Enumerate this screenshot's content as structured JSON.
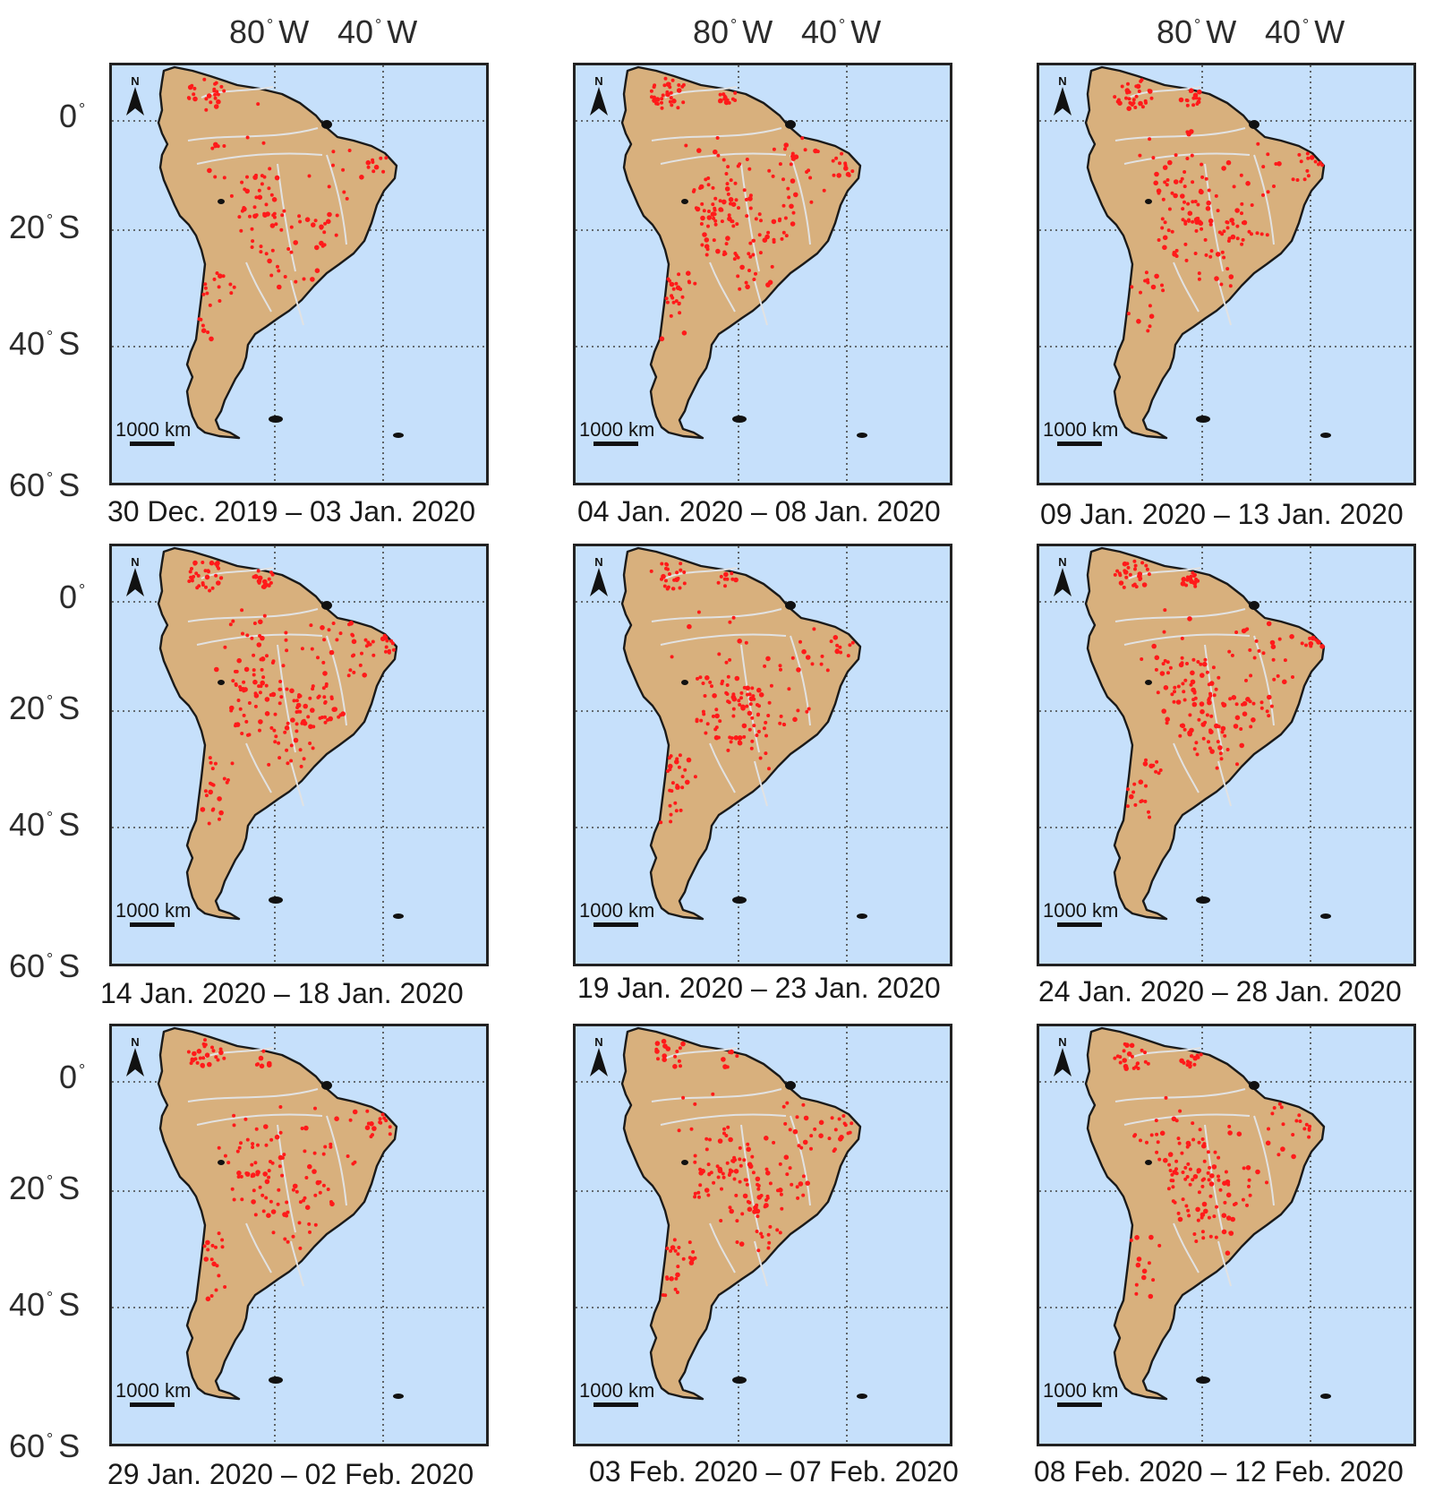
{
  "axes": {
    "longitude_labels": [
      {
        "num": "80",
        "hemi": "W"
      },
      {
        "num": "40",
        "hemi": "W"
      }
    ],
    "latitude_labels": [
      {
        "num": "0",
        "hemi": ""
      },
      {
        "num": "20",
        "hemi": "S"
      },
      {
        "num": "40",
        "hemi": "S"
      },
      {
        "num": "60",
        "hemi": "S"
      }
    ],
    "degree_symbol": "°"
  },
  "map_elements": {
    "scale_label": "1000 km",
    "north_label": "N"
  },
  "colors": {
    "ocean": "#c6e0fb",
    "land": "#d8b07d",
    "coast": "#1a1a1a",
    "rivers": "#e2e2e2",
    "fire": "#ff1a1a",
    "grid": "#444444"
  },
  "panels": [
    {
      "caption": "30 Dec. 2019 – 03 Jan. 2020",
      "fire_seed": 11,
      "fire_count": 150
    },
    {
      "caption": "04 Jan. 2020 – 08 Jan. 2020",
      "fire_seed": 23,
      "fire_count": 230
    },
    {
      "caption": "09 Jan. 2020 – 13 Jan. 2020",
      "fire_seed": 37,
      "fire_count": 210
    },
    {
      "caption": "14 Jan. 2020 – 18 Jan. 2020",
      "fire_seed": 41,
      "fire_count": 260
    },
    {
      "caption": "19 Jan. 2020 – 23 Jan. 2020",
      "fire_seed": 53,
      "fire_count": 190
    },
    {
      "caption": "24 Jan. 2020 – 28 Jan. 2020",
      "fire_seed": 67,
      "fire_count": 220
    },
    {
      "caption": "29 Jan. 2020 – 02 Feb. 2020",
      "fire_seed": 71,
      "fire_count": 170
    },
    {
      "caption": "03 Feb. 2020 – 07 Feb. 2020",
      "fire_seed": 83,
      "fire_count": 200
    },
    {
      "caption": "08 Feb. 2020 – 12 Feb. 2020",
      "fire_seed": 97,
      "fire_count": 190
    }
  ]
}
